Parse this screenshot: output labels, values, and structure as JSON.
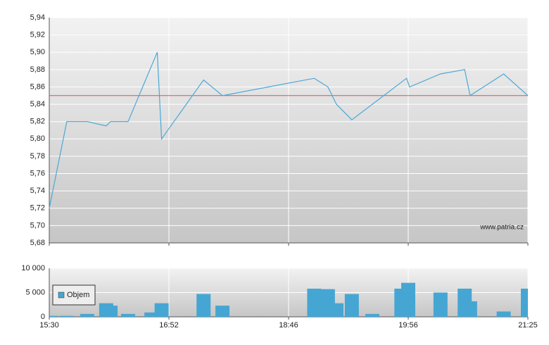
{
  "chart_data": [
    {
      "type": "line",
      "x": [
        "15:30",
        "15:42",
        "15:56",
        "16:09",
        "16:12",
        "16:24",
        "16:44",
        "16:47",
        "17:25",
        "17:43",
        "19:01",
        "19:09",
        "19:14",
        "19:23",
        "19:55",
        "19:57",
        "20:20",
        "20:38",
        "20:42",
        "21:07",
        "21:25"
      ],
      "values": [
        5.72,
        5.82,
        5.82,
        5.815,
        5.82,
        5.82,
        5.9,
        5.8,
        5.868,
        5.85,
        5.87,
        5.86,
        5.84,
        5.822,
        5.87,
        5.86,
        5.875,
        5.88,
        5.85,
        5.875,
        5.85
      ],
      "color": "#4ba8d6",
      "reference_line": {
        "value": 5.85,
        "color": "#d9534f"
      },
      "ylim": [
        5.68,
        5.94
      ],
      "yticks": [
        {
          "value": 5.68,
          "label": "5,68"
        },
        {
          "value": 5.7,
          "label": "5,70"
        },
        {
          "value": 5.72,
          "label": "5,72"
        },
        {
          "value": 5.74,
          "label": "5,74"
        },
        {
          "value": 5.76,
          "label": "5,76"
        },
        {
          "value": 5.78,
          "label": "5,78"
        },
        {
          "value": 5.8,
          "label": "5,80"
        },
        {
          "value": 5.82,
          "label": "5,82"
        },
        {
          "value": 5.84,
          "label": "5,84"
        },
        {
          "value": 5.86,
          "label": "5,86"
        },
        {
          "value": 5.88,
          "label": "5,88"
        },
        {
          "value": 5.9,
          "label": "5,90"
        },
        {
          "value": 5.92,
          "label": "5,92"
        },
        {
          "value": 5.94,
          "label": "5,94"
        }
      ],
      "watermark": "www.patria.cz",
      "grid": true
    },
    {
      "type": "bar",
      "x": [
        "15:31",
        "15:42",
        "15:56",
        "16:09",
        "16:12",
        "16:24",
        "16:40",
        "16:47",
        "17:25",
        "17:43",
        "19:01",
        "19:09",
        "19:14",
        "19:23",
        "19:35",
        "19:52",
        "19:56",
        "20:20",
        "20:38",
        "20:42",
        "21:07",
        "21:25"
      ],
      "series": [
        {
          "name": "Objem",
          "color": "#46a6d3",
          "values": [
            200,
            200,
            600,
            2800,
            2300,
            600,
            900,
            2800,
            4700,
            2300,
            5800,
            5700,
            2800,
            4700,
            600,
            5800,
            7000,
            5000,
            5800,
            3200,
            1100,
            5800
          ]
        }
      ],
      "ylim": [
        0,
        10000
      ],
      "yticks": [
        0,
        {
          "value": 5000,
          "label": "5 000"
        },
        {
          "value": 10000,
          "label": "10 000"
        }
      ],
      "xticks": [
        "15:30",
        "16:52",
        "18:46",
        "19:56",
        "21:25"
      ],
      "legend": "lower left",
      "grid": true
    }
  ]
}
